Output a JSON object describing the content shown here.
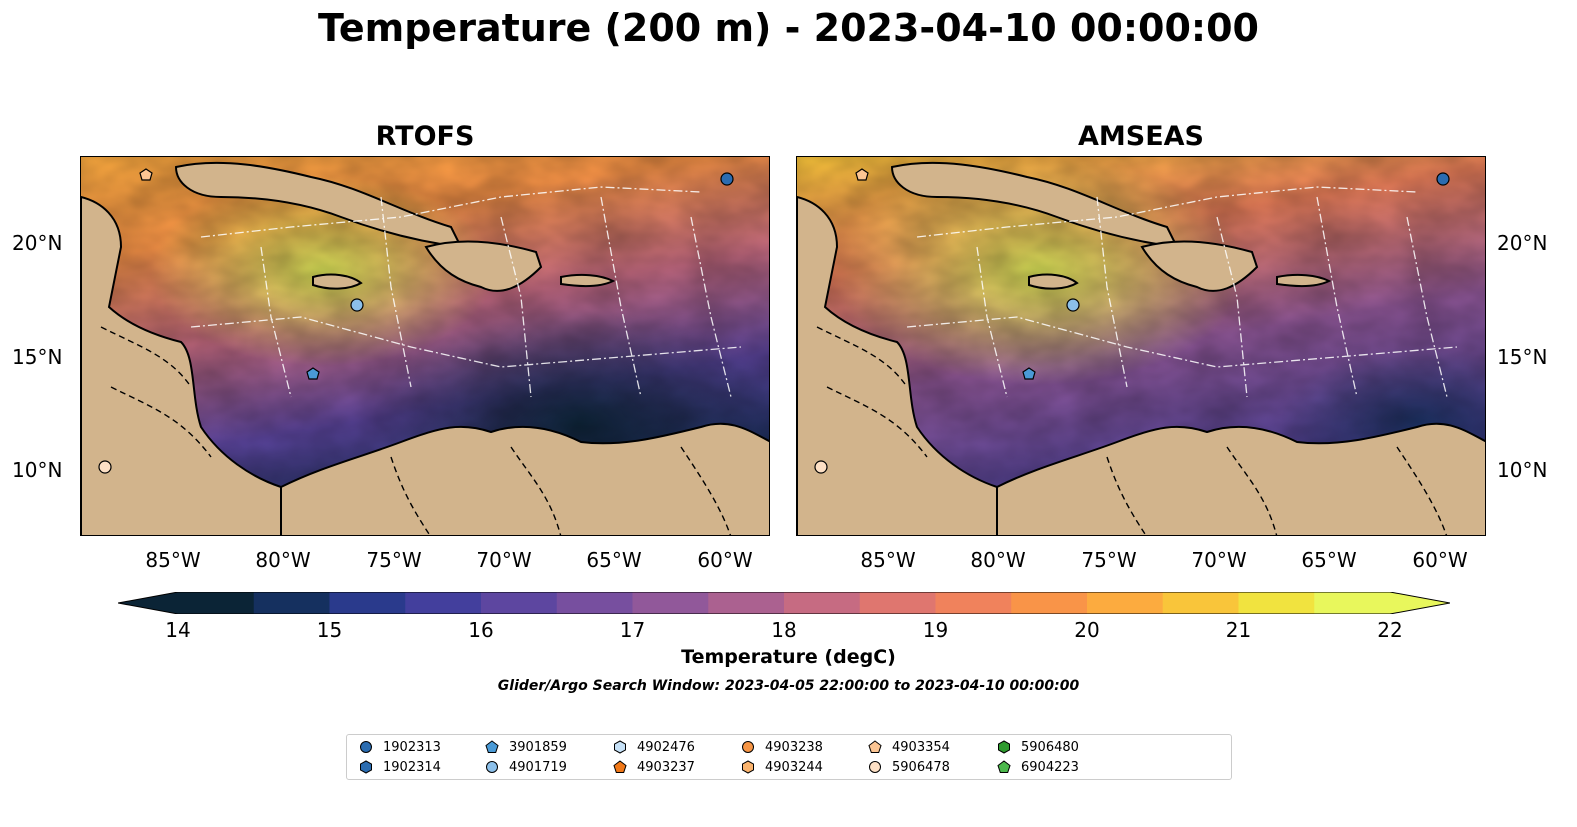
{
  "figure": {
    "title": "Temperature (200 m) - 2023-04-10 00:00:00",
    "panels": [
      {
        "title": "RTOFS"
      },
      {
        "title": "AMSEAS"
      }
    ],
    "lat_labels": [
      "20°N",
      "15°N",
      "10°N"
    ],
    "lon_labels": [
      "85°W",
      "80°W",
      "75°W",
      "70°W",
      "65°W",
      "60°W"
    ]
  },
  "colorbar": {
    "label": "Temperature (degC)",
    "ticks": [
      "14",
      "15",
      "16",
      "17",
      "18",
      "19",
      "20",
      "21",
      "22"
    ],
    "range": [
      14,
      22
    ],
    "colormap": [
      "#0b2436",
      "#15305f",
      "#2a3a8c",
      "#433f9d",
      "#5d46a0",
      "#774f9f",
      "#91589a",
      "#ab6190",
      "#c66b82",
      "#df766f",
      "#f0825c",
      "#f99448",
      "#fcab3f",
      "#f9c53a",
      "#f1e33f",
      "#e8f75c"
    ],
    "extend": "both"
  },
  "search_window": "Glider/Argo Search Window: 2023-04-05 22:00:00 to 2023-04-10 00:00:00",
  "legend": {
    "entries": [
      {
        "label": "1902313",
        "marker": "circle",
        "color": "#2b6cb0"
      },
      {
        "label": "1902314",
        "marker": "hexagon",
        "color": "#2b6cb0"
      },
      {
        "label": "3901859",
        "marker": "pentagon",
        "color": "#4a9ad6"
      },
      {
        "label": "4901719",
        "marker": "circle",
        "color": "#8cc0ea"
      },
      {
        "label": "4902476",
        "marker": "hexagon",
        "color": "#c6e1f7"
      },
      {
        "label": "4903237",
        "marker": "pentagon",
        "color": "#f07818"
      },
      {
        "label": "4903238",
        "marker": "circle",
        "color": "#f79646"
      },
      {
        "label": "4903244",
        "marker": "hexagon",
        "color": "#fbb46e"
      },
      {
        "label": "4903354",
        "marker": "pentagon",
        "color": "#fcc593"
      },
      {
        "label": "5906478",
        "marker": "circle",
        "color": "#fde0c5"
      },
      {
        "label": "5906480",
        "marker": "hexagon",
        "color": "#2e9a2e"
      },
      {
        "label": "6904223",
        "marker": "pentagon",
        "color": "#4cb84c"
      }
    ]
  },
  "land_color": "#d2b48c",
  "shelf_color": "#9cbbe0"
}
